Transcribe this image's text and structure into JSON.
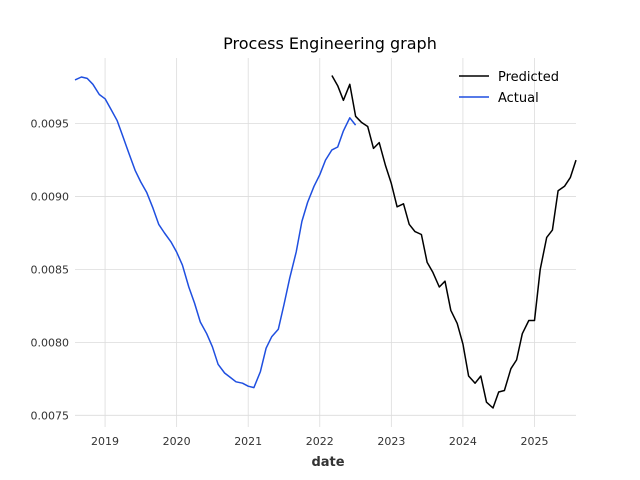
{
  "chart_data": {
    "type": "line",
    "title": "Process Engineering graph",
    "xlabel": "date",
    "ylabel": "",
    "xlim": [
      2018.58,
      2025.58
    ],
    "ylim": [
      0.00742,
      0.00995
    ],
    "x_ticks": [
      2019,
      2020,
      2021,
      2022,
      2023,
      2024,
      2025
    ],
    "x_tick_labels": [
      "2019",
      "2020",
      "2021",
      "2022",
      "2023",
      "2024",
      "2025"
    ],
    "y_ticks": [
      0.0075,
      0.008,
      0.0085,
      0.009,
      0.0095
    ],
    "y_tick_labels": [
      "0.0075",
      "0.0080",
      "0.0085",
      "0.0090",
      "0.0095"
    ],
    "grid": true,
    "legend_position": "top-right",
    "series": [
      {
        "name": "Predicted",
        "color": "#000000",
        "x": [
          2022.17,
          2022.25,
          2022.33,
          2022.42,
          2022.5,
          2022.58,
          2022.67,
          2022.75,
          2022.83,
          2022.92,
          2023.0,
          2023.08,
          2023.17,
          2023.25,
          2023.33,
          2023.42,
          2023.5,
          2023.58,
          2023.67,
          2023.75,
          2023.83,
          2023.92,
          2024.0,
          2024.08,
          2024.17,
          2024.25,
          2024.33,
          2024.42,
          2024.5,
          2024.58,
          2024.67,
          2024.75,
          2024.83,
          2024.92,
          2025.0,
          2025.08,
          2025.17,
          2025.25,
          2025.33,
          2025.42,
          2025.5,
          2025.58
        ],
        "values": [
          0.00983,
          0.00976,
          0.00966,
          0.00977,
          0.00955,
          0.00951,
          0.00948,
          0.00933,
          0.00937,
          0.00921,
          0.00909,
          0.00893,
          0.00895,
          0.00881,
          0.00876,
          0.00874,
          0.00855,
          0.00848,
          0.00838,
          0.00842,
          0.00822,
          0.00813,
          0.00799,
          0.00777,
          0.00772,
          0.00777,
          0.00759,
          0.00755,
          0.00766,
          0.00767,
          0.00782,
          0.00788,
          0.00806,
          0.00815,
          0.00815,
          0.0085,
          0.00872,
          0.00877,
          0.00904,
          0.00907,
          0.00913,
          0.00925
        ]
      },
      {
        "name": "Actual",
        "color": "#1f4fe0",
        "x": [
          2018.58,
          2018.67,
          2018.75,
          2018.83,
          2018.92,
          2019.0,
          2019.08,
          2019.17,
          2019.25,
          2019.33,
          2019.42,
          2019.5,
          2019.58,
          2019.67,
          2019.75,
          2019.83,
          2019.92,
          2020.0,
          2020.08,
          2020.17,
          2020.25,
          2020.33,
          2020.42,
          2020.5,
          2020.58,
          2020.67,
          2020.75,
          2020.83,
          2020.92,
          2021.0,
          2021.08,
          2021.17,
          2021.25,
          2021.33,
          2021.42,
          2021.5,
          2021.58,
          2021.67,
          2021.75,
          2021.83,
          2021.92,
          2022.0,
          2022.08,
          2022.17,
          2022.25,
          2022.33,
          2022.42,
          2022.5
        ],
        "values": [
          0.0098,
          0.00982,
          0.00981,
          0.00977,
          0.0097,
          0.00967,
          0.0096,
          0.00952,
          0.00941,
          0.0093,
          0.00918,
          0.0091,
          0.00903,
          0.00892,
          0.00881,
          0.00875,
          0.00869,
          0.00862,
          0.00853,
          0.00838,
          0.00827,
          0.00814,
          0.00806,
          0.00797,
          0.00785,
          0.00779,
          0.00776,
          0.00773,
          0.00772,
          0.0077,
          0.00769,
          0.0078,
          0.00796,
          0.00804,
          0.00809,
          0.00826,
          0.00844,
          0.00862,
          0.00883,
          0.00896,
          0.00907,
          0.00915,
          0.00925,
          0.00932,
          0.00934,
          0.00945,
          0.00954,
          0.00949
        ]
      }
    ]
  }
}
